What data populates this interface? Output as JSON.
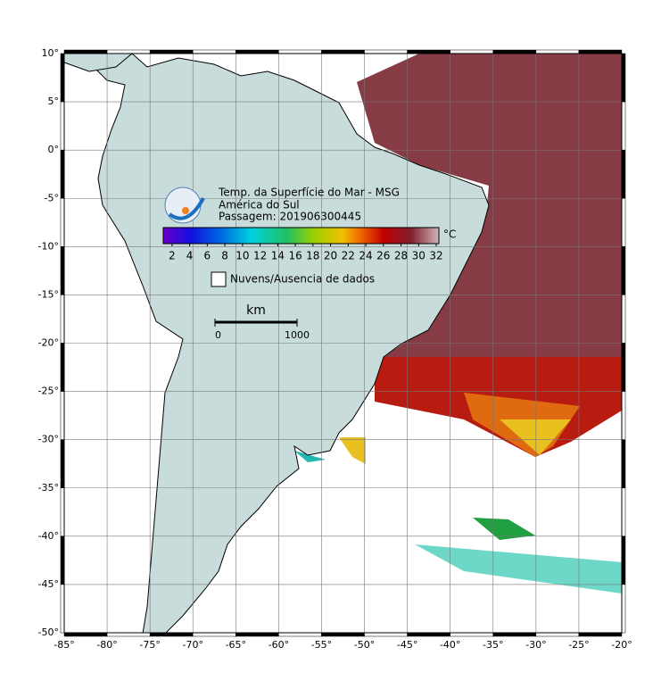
{
  "map": {
    "title_lines": [
      "Temp. da Superfície do Mar - MSG",
      "América do Sul",
      "Passagem: 201906300445"
    ],
    "lon_ticks": [
      {
        "value": -85,
        "label": "-85°"
      },
      {
        "value": -80,
        "label": "-80°"
      },
      {
        "value": -75,
        "label": "-75°"
      },
      {
        "value": -70,
        "label": "-70°"
      },
      {
        "value": -65,
        "label": "-65°"
      },
      {
        "value": -60,
        "label": "-60°"
      },
      {
        "value": -55,
        "label": "-55°"
      },
      {
        "value": -50,
        "label": "-50°"
      },
      {
        "value": -45,
        "label": "-45°"
      },
      {
        "value": -40,
        "label": "-40°"
      },
      {
        "value": -35,
        "label": "-35°"
      },
      {
        "value": -30,
        "label": "-30°"
      },
      {
        "value": -25,
        "label": "-25°"
      },
      {
        "value": -20,
        "label": "-20°"
      }
    ],
    "lat_ticks": [
      {
        "value": 10,
        "label": "10°"
      },
      {
        "value": 5,
        "label": "5°"
      },
      {
        "value": 0,
        "label": "0°"
      },
      {
        "value": -5,
        "label": "-5°"
      },
      {
        "value": -10,
        "label": "-10°"
      },
      {
        "value": -15,
        "label": "-15°"
      },
      {
        "value": -20,
        "label": "-20°"
      },
      {
        "value": -25,
        "label": "-25°"
      },
      {
        "value": -30,
        "label": "-30°"
      },
      {
        "value": -35,
        "label": "-35°"
      },
      {
        "value": -40,
        "label": "-40°"
      },
      {
        "value": -45,
        "label": "-45°"
      },
      {
        "value": -50,
        "label": "-50°"
      }
    ],
    "lonlim": [
      -85,
      -20
    ],
    "latlim": [
      -50,
      10
    ],
    "colorbar": {
      "unit": "°C",
      "lim": [
        1,
        32.3
      ],
      "ticks": [
        2,
        4,
        6,
        8,
        10,
        12,
        14,
        16,
        18,
        20,
        22,
        24,
        26,
        28,
        30,
        32
      ]
    },
    "legend": "Nuvens/Ausencia de dados",
    "scale_bar": {
      "unit": "km",
      "ticks": [
        0,
        1000
      ]
    }
  }
}
